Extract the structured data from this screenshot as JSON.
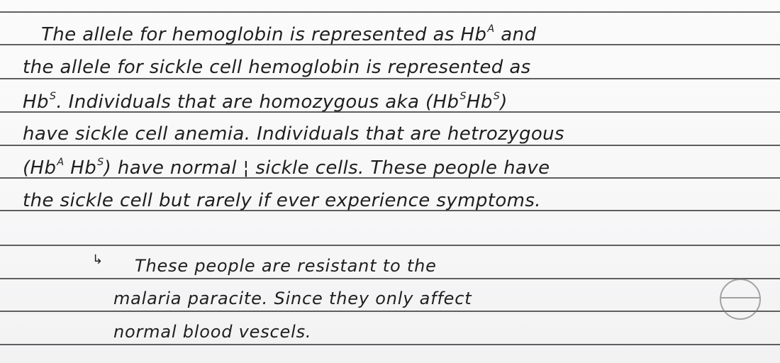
{
  "notes": {
    "l1": {
      "a": "The allele for hemoglobin is represented as Hb",
      "sup": "A",
      "b": " and"
    },
    "l2": "the allele for sickle cell hemoglobin is represented as",
    "l3": {
      "a": "Hb",
      "sup1": "S",
      "b": ". Individuals that are homozygous aka (Hb",
      "sup2": "S",
      "c": "Hb",
      "sup3": "S",
      "d": ")"
    },
    "l4": "have sickle cell anemia. Individuals that are hetrozygous",
    "l5": {
      "a": "(Hb",
      "sup1": "A",
      "b": " Hb",
      "sup2": "S",
      "c": ") have normal ¦ sickle cells. These people have"
    },
    "l6": "the sickle cell but rarely if ever experience symptoms.",
    "l7_arrow": "↳",
    "l7": "These people are resistant to the",
    "l8": "malaria paracite. Since they only affect",
    "l9": "normal blood vescels."
  }
}
